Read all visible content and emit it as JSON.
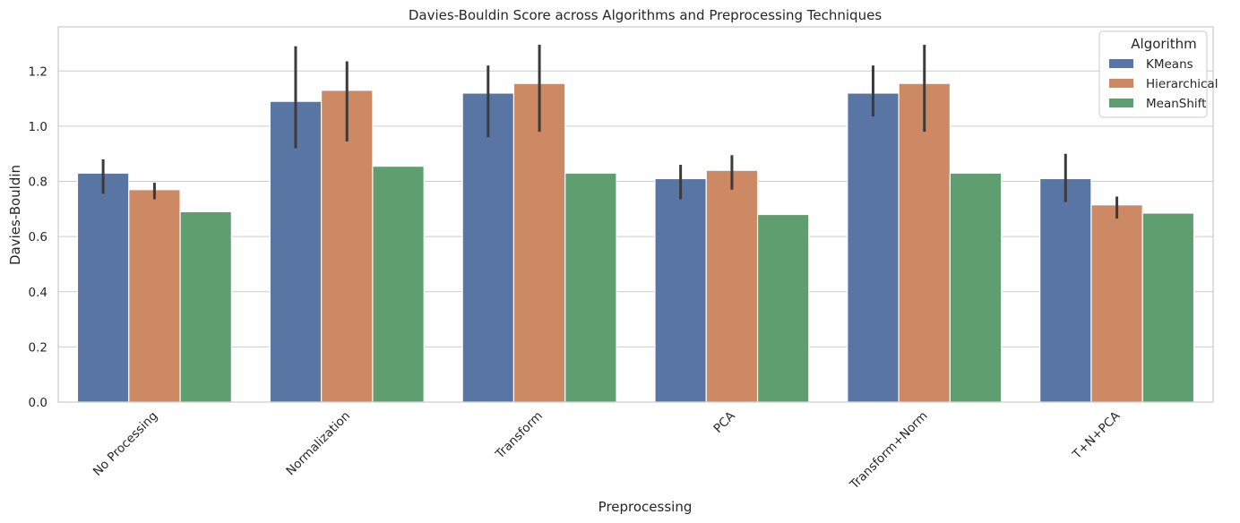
{
  "chart_data": {
    "type": "bar",
    "title": "Davies-Bouldin Score across Algorithms and Preprocessing Techniques",
    "xlabel": "Preprocessing",
    "ylabel": "Davies-Bouldin",
    "ylim": [
      0,
      1.36
    ],
    "yticks": [
      0.0,
      0.2,
      0.4,
      0.6,
      0.8,
      1.0,
      1.2
    ],
    "ytick_labels": [
      "0.0",
      "0.2",
      "0.4",
      "0.6",
      "0.8",
      "1.0",
      "1.2"
    ],
    "grid": "horizontal",
    "legend_title": "Algorithm",
    "legend_position": "top-right",
    "categories": [
      "No Processing",
      "Normalization",
      "Transform",
      "PCA",
      "Transform+Norm",
      "T+N+PCA"
    ],
    "series": [
      {
        "name": "KMeans",
        "color": "#5975a4",
        "values": [
          0.83,
          1.09,
          1.12,
          0.81,
          1.12,
          0.81
        ],
        "error_low": [
          0.755,
          0.92,
          0.96,
          0.735,
          1.035,
          0.725
        ],
        "error_high": [
          0.88,
          1.29,
          1.22,
          0.86,
          1.22,
          0.9
        ]
      },
      {
        "name": "Hierarchical",
        "color": "#cc8963",
        "values": [
          0.77,
          1.13,
          1.155,
          0.84,
          1.155,
          0.715
        ],
        "error_low": [
          0.735,
          0.945,
          0.98,
          0.77,
          0.98,
          0.665
        ],
        "error_high": [
          0.795,
          1.235,
          1.295,
          0.895,
          1.295,
          0.745
        ]
      },
      {
        "name": "MeanShift",
        "color": "#5f9e6e",
        "values": [
          0.69,
          0.855,
          0.83,
          0.68,
          0.83,
          0.685
        ],
        "error_low": null,
        "error_high": null
      }
    ]
  }
}
